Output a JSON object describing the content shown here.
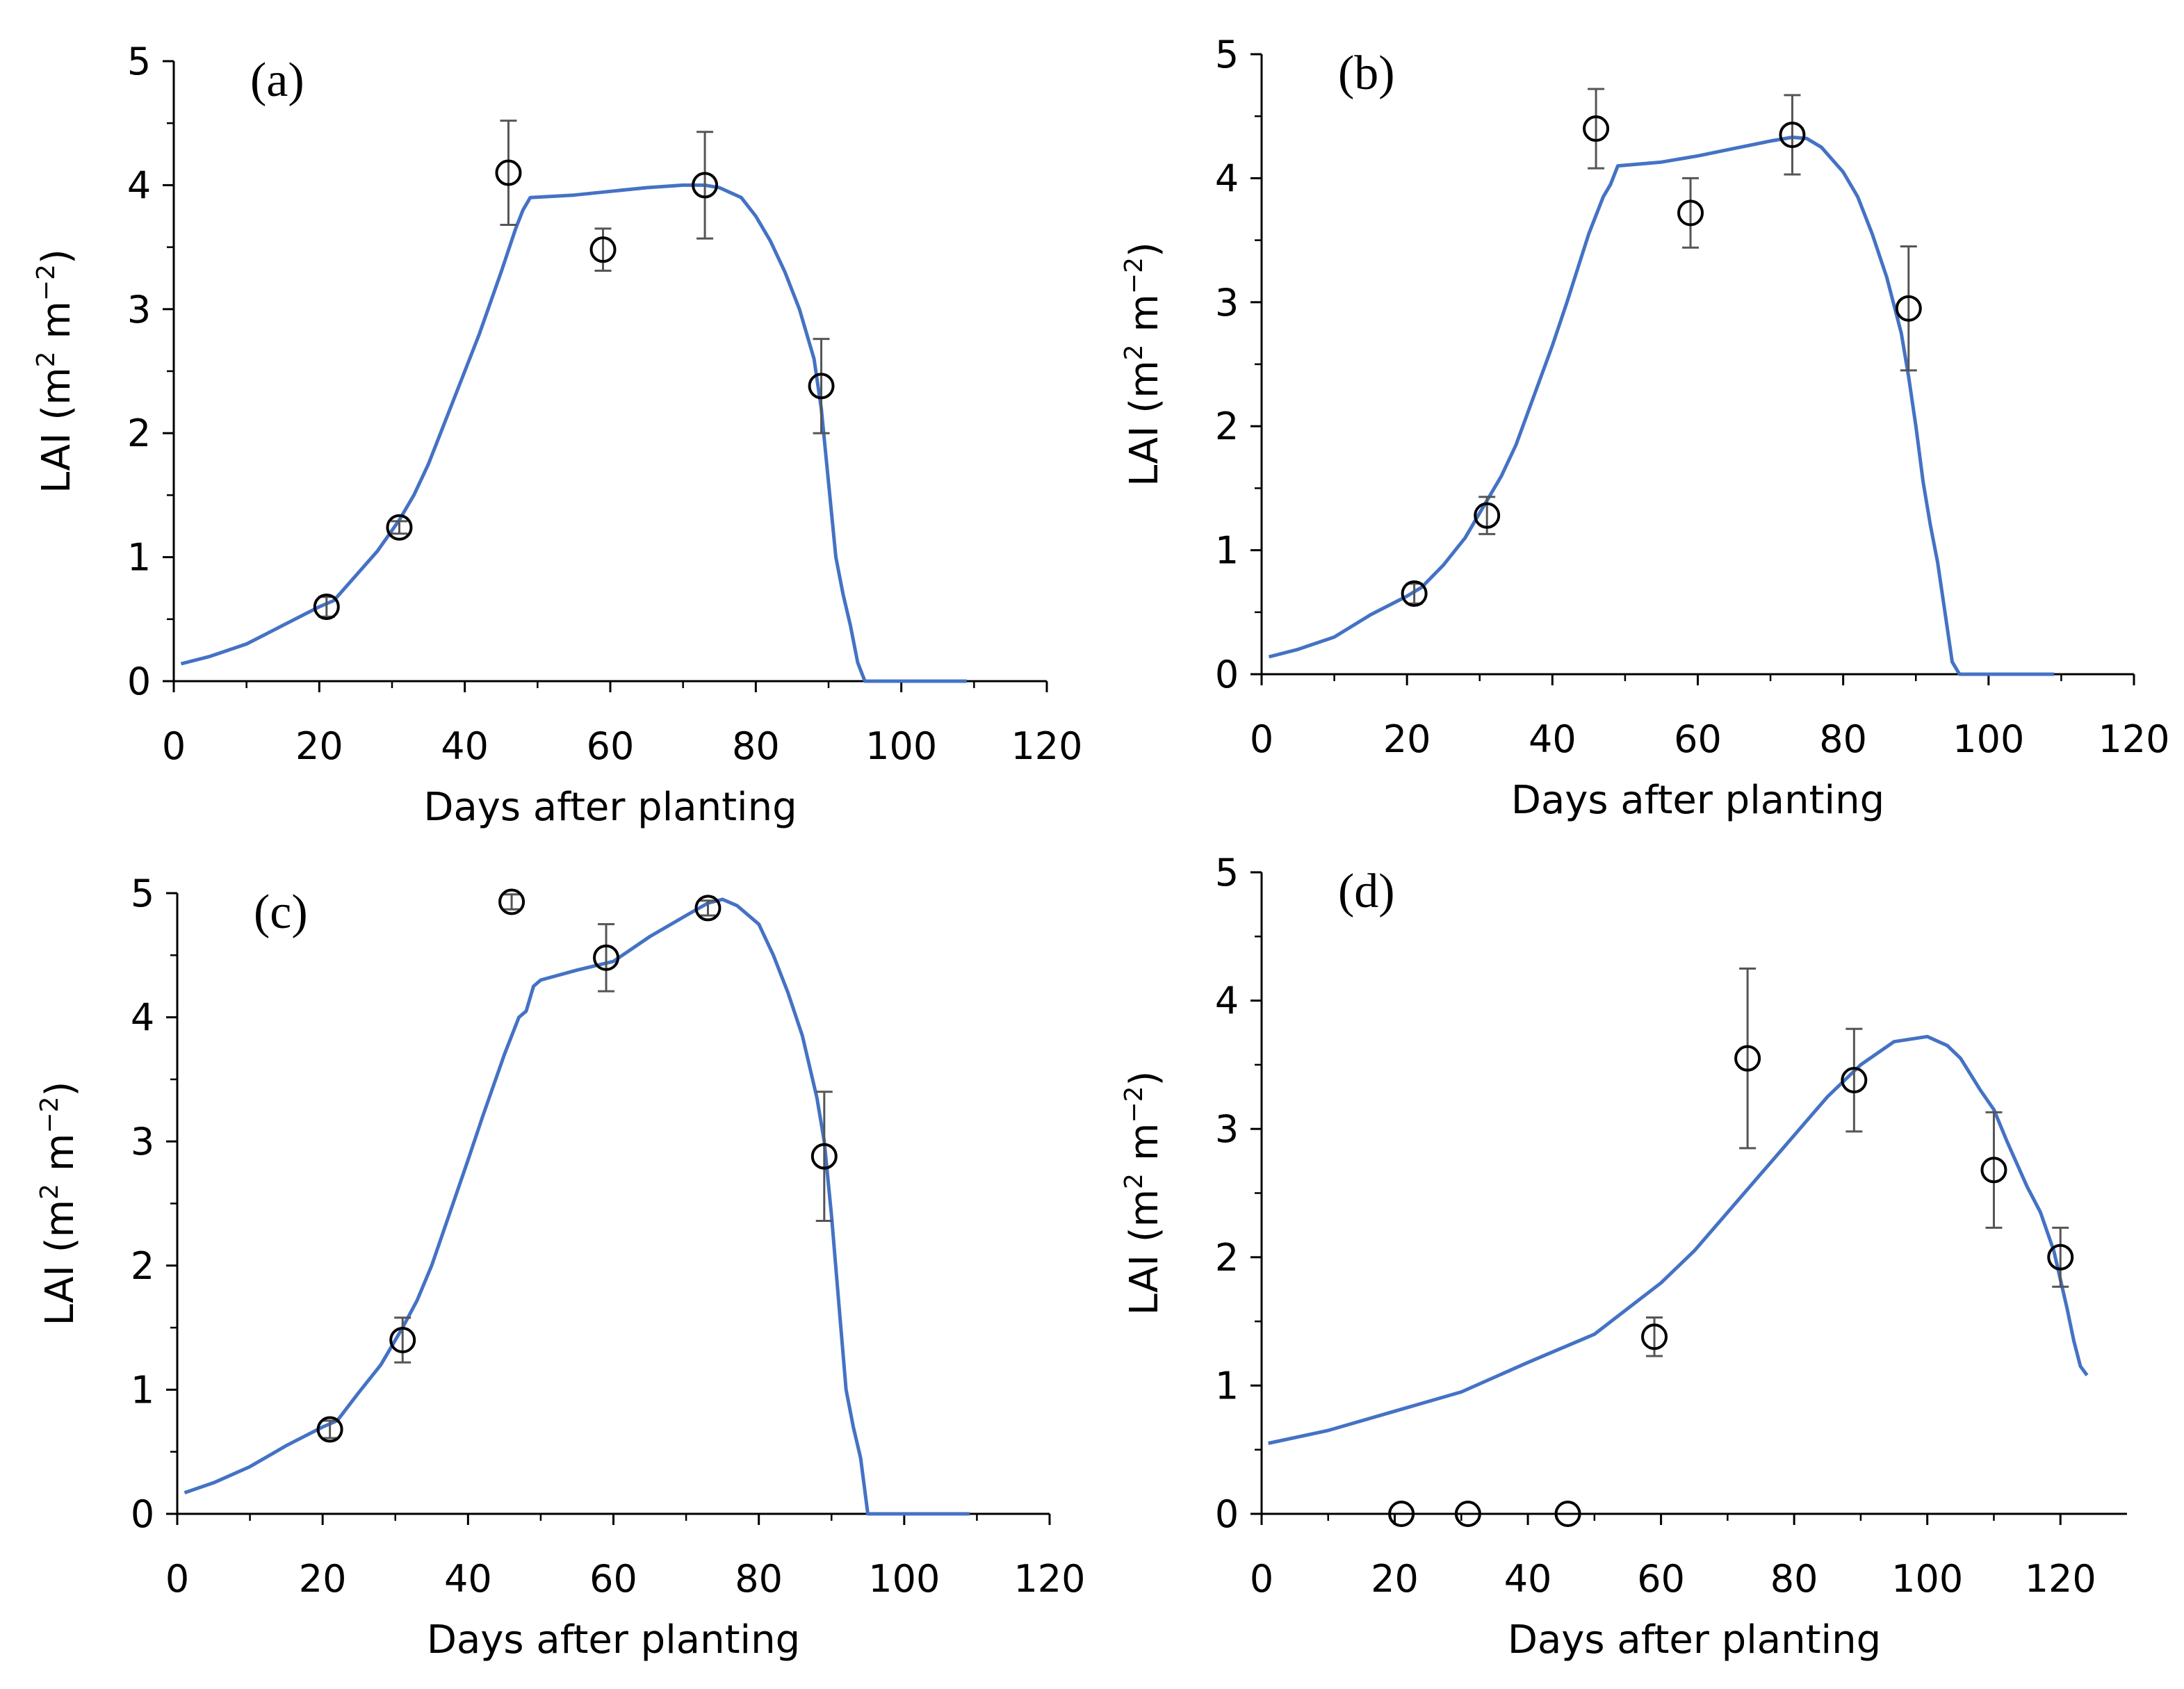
{
  "colors": {
    "simulated_line": "#4472C4",
    "observed_marker": "#000000",
    "error_bar": "#555555",
    "axis": "#000000"
  },
  "chart_data": [
    {
      "type": "line",
      "panel_label": "(a)",
      "xlabel": "Days after planting",
      "ylabel_main": "LAI (m",
      "ylabel_sup1": "2",
      "ylabel_mid": " m",
      "ylabel_sup2": "−2",
      "ylabel_end": ")",
      "xlim": [
        0,
        120
      ],
      "ylim": [
        0,
        5
      ],
      "x_ticks": [
        0,
        20,
        40,
        60,
        80,
        100,
        120
      ],
      "y_ticks": [
        0,
        1,
        2,
        3,
        4,
        5
      ],
      "x_tick_labels": [
        "0",
        "20",
        "40",
        "60",
        "80",
        "100",
        "120"
      ],
      "y_tick_labels": [
        "0",
        "1",
        "2",
        "3",
        "4",
        "5"
      ],
      "series": [
        {
          "kind": "line",
          "x": [
            1,
            5,
            10,
            15,
            20,
            22,
            25,
            28,
            31,
            33,
            35,
            40,
            42,
            45,
            47,
            48,
            49,
            55,
            60,
            65,
            70,
            73,
            75,
            78,
            80,
            82,
            84,
            86,
            88,
            89,
            90,
            91,
            92,
            93,
            94,
            95,
            100,
            109
          ],
          "y": [
            0.14,
            0.2,
            0.3,
            0.45,
            0.6,
            0.65,
            0.85,
            1.05,
            1.3,
            1.5,
            1.75,
            2.5,
            2.8,
            3.3,
            3.65,
            3.8,
            3.9,
            3.92,
            3.95,
            3.98,
            4.0,
            4.0,
            3.98,
            3.9,
            3.75,
            3.55,
            3.3,
            3.0,
            2.6,
            2.2,
            1.6,
            1.0,
            0.7,
            0.45,
            0.15,
            0.0,
            0.0,
            0.0
          ]
        },
        {
          "kind": "scatter",
          "x": [
            21,
            31,
            46,
            59,
            73,
            89
          ],
          "y": [
            0.6,
            1.24,
            4.1,
            3.48,
            4.0,
            2.38
          ],
          "err": [
            0.08,
            0.05,
            0.42,
            0.17,
            0.43,
            0.38
          ]
        }
      ]
    },
    {
      "type": "line",
      "panel_label": "(b)",
      "xlabel": "Days after planting",
      "ylabel_main": "LAI (m",
      "ylabel_sup1": "2",
      "ylabel_mid": " m",
      "ylabel_sup2": "−2",
      "ylabel_end": ")",
      "xlim": [
        0,
        120
      ],
      "ylim": [
        0,
        5
      ],
      "x_ticks": [
        0,
        20,
        40,
        60,
        80,
        100,
        120
      ],
      "y_ticks": [
        0,
        1,
        2,
        3,
        4,
        5
      ],
      "x_tick_labels": [
        "0",
        "20",
        "40",
        "60",
        "80",
        "100",
        "120"
      ],
      "y_tick_labels": [
        "0",
        "1",
        "2",
        "3",
        "4",
        "5"
      ],
      "series": [
        {
          "kind": "line",
          "x": [
            1,
            5,
            10,
            15,
            20,
            22,
            25,
            28,
            31,
            33,
            35,
            40,
            42,
            45,
            47,
            48,
            49,
            55,
            60,
            65,
            70,
            73,
            75,
            77,
            80,
            82,
            84,
            86,
            88,
            89,
            90,
            91,
            92,
            93,
            94,
            95,
            96,
            100,
            109
          ],
          "y": [
            0.14,
            0.2,
            0.3,
            0.48,
            0.63,
            0.7,
            0.88,
            1.1,
            1.4,
            1.6,
            1.85,
            2.65,
            3.0,
            3.55,
            3.85,
            3.95,
            4.1,
            4.13,
            4.18,
            4.24,
            4.3,
            4.33,
            4.32,
            4.25,
            4.05,
            3.85,
            3.55,
            3.2,
            2.75,
            2.4,
            2.0,
            1.55,
            1.2,
            0.9,
            0.5,
            0.1,
            0.0,
            0.0,
            0.0
          ]
        },
        {
          "kind": "scatter",
          "x": [
            21,
            31,
            46,
            59,
            73,
            89
          ],
          "y": [
            0.65,
            1.28,
            4.4,
            3.72,
            4.35,
            2.95
          ],
          "err": [
            0.08,
            0.15,
            0.32,
            0.28,
            0.32,
            0.5
          ]
        }
      ]
    },
    {
      "type": "line",
      "panel_label": "(c)",
      "xlabel": "Days after planting",
      "ylabel_main": "LAI (m",
      "ylabel_sup1": "2",
      "ylabel_mid": " m",
      "ylabel_sup2": "−2",
      "ylabel_end": ")",
      "xlim": [
        0,
        120
      ],
      "ylim": [
        0,
        5
      ],
      "x_ticks": [
        0,
        20,
        40,
        60,
        80,
        100,
        120
      ],
      "y_ticks": [
        0,
        1,
        2,
        3,
        4,
        5
      ],
      "x_tick_labels": [
        "0",
        "20",
        "40",
        "60",
        "80",
        "100",
        "120"
      ],
      "y_tick_labels": [
        "0",
        "1",
        "2",
        "3",
        "4",
        "5"
      ],
      "series": [
        {
          "kind": "line",
          "x": [
            1,
            5,
            10,
            15,
            20,
            22,
            25,
            28,
            31,
            33,
            35,
            40,
            42,
            45,
            47,
            48,
            49,
            50,
            55,
            60,
            65,
            70,
            73,
            75,
            77,
            80,
            82,
            84,
            86,
            88,
            89,
            90,
            91,
            92,
            93,
            94,
            95,
            100,
            109
          ],
          "y": [
            0.17,
            0.25,
            0.38,
            0.55,
            0.7,
            0.75,
            0.98,
            1.2,
            1.5,
            1.72,
            2.0,
            2.85,
            3.2,
            3.7,
            4.0,
            4.05,
            4.25,
            4.3,
            4.38,
            4.45,
            4.65,
            4.82,
            4.92,
            4.95,
            4.9,
            4.75,
            4.5,
            4.2,
            3.85,
            3.35,
            3.0,
            2.4,
            1.7,
            1.0,
            0.7,
            0.45,
            0.0,
            0.0,
            0.0
          ]
        },
        {
          "kind": "scatter",
          "x": [
            21,
            31,
            46,
            59,
            73,
            89
          ],
          "y": [
            0.68,
            1.4,
            4.93,
            4.48,
            4.88,
            2.88
          ],
          "err": [
            0.07,
            0.18,
            0.06,
            0.27,
            0.06,
            0.52
          ]
        }
      ]
    },
    {
      "type": "line",
      "panel_label": "(d)",
      "xlabel": "Days after planting",
      "ylabel_main": "LAI (m",
      "ylabel_sup1": "2",
      "ylabel_mid": " m",
      "ylabel_sup2": "−2",
      "ylabel_end": ")",
      "xlim": [
        0,
        130
      ],
      "ylim": [
        0,
        5
      ],
      "x_ticks": [
        0,
        20,
        40,
        60,
        80,
        100,
        120
      ],
      "y_ticks": [
        0,
        1,
        2,
        3,
        4,
        5
      ],
      "x_tick_labels": [
        "0",
        "20",
        "40",
        "60",
        "80",
        "100",
        "120"
      ],
      "y_tick_labels": [
        "0",
        "1",
        "2",
        "3",
        "4",
        "5"
      ],
      "series": [
        {
          "kind": "line",
          "x": [
            1,
            10,
            20,
            30,
            40,
            50,
            55,
            60,
            65,
            70,
            75,
            80,
            85,
            90,
            95,
            100,
            103,
            105,
            108,
            110,
            112,
            115,
            117,
            119,
            121,
            122,
            123,
            124
          ],
          "y": [
            0.55,
            0.65,
            0.8,
            0.95,
            1.18,
            1.4,
            1.6,
            1.8,
            2.05,
            2.35,
            2.65,
            2.95,
            3.25,
            3.5,
            3.68,
            3.72,
            3.65,
            3.55,
            3.3,
            3.15,
            2.9,
            2.55,
            2.35,
            2.05,
            1.6,
            1.35,
            1.15,
            1.08
          ]
        },
        {
          "kind": "scatter",
          "x": [
            21,
            31,
            46,
            59,
            73,
            89,
            110,
            120
          ],
          "y": [
            0.0,
            0.0,
            0.0,
            1.38,
            3.55,
            3.38,
            2.68,
            2.0
          ],
          "err": [
            0.0,
            0.0,
            0.0,
            0.15,
            0.7,
            0.4,
            0.45,
            0.23
          ]
        }
      ]
    }
  ]
}
